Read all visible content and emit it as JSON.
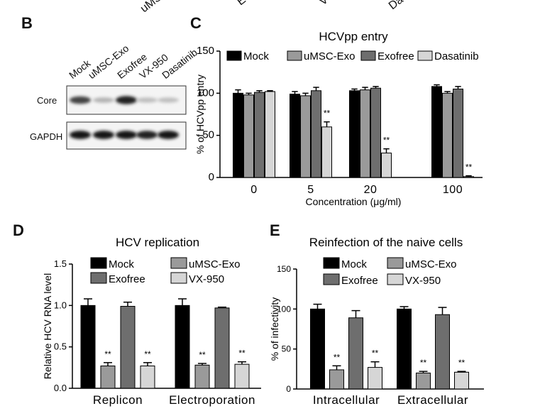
{
  "top_partial_labels": [
    "uMS",
    "E",
    "V",
    "Da"
  ],
  "panelB": {
    "letter": "B",
    "lanes": [
      "Mock",
      "uMSC-Exo",
      "Exofree",
      "VX-950",
      "Dasatinib"
    ],
    "rows": [
      "Core",
      "GAPDH"
    ],
    "band_intensity": {
      "Core": [
        0.75,
        0.25,
        0.9,
        0.2,
        0.2
      ],
      "GAPDH": [
        0.95,
        0.95,
        0.95,
        0.9,
        0.95
      ]
    }
  },
  "chart_data": [
    {
      "id": "C",
      "letter": "C",
      "type": "bar",
      "title": "HCVpp entry",
      "xlabel": "Concentration (μg/ml)",
      "ylabel": "% of HCVpp entry",
      "categories": [
        "0",
        "5",
        "20",
        "100"
      ],
      "ylim": [
        0,
        150
      ],
      "yticks": [
        0,
        50,
        100,
        150
      ],
      "yticklabels": [
        "0",
        "50",
        "100",
        "150"
      ],
      "legend_position": "top",
      "series": [
        {
          "name": "Mock",
          "color": "#000000",
          "values": [
            100,
            99,
            103,
            108
          ],
          "errors": [
            4,
            3,
            2,
            2
          ]
        },
        {
          "name": "uMSC-Exo",
          "color": "#9a9a9a",
          "values": [
            98,
            97,
            104,
            100
          ],
          "errors": [
            2,
            3,
            3,
            2
          ]
        },
        {
          "name": "Exofree",
          "color": "#6e6e6e",
          "values": [
            101,
            103,
            106,
            105
          ],
          "errors": [
            2,
            4,
            2,
            3
          ]
        },
        {
          "name": "Dasatinib",
          "color": "#d6d6d6",
          "values": [
            102,
            60,
            29,
            1
          ],
          "errors": [
            1,
            6,
            5,
            1
          ]
        }
      ],
      "annotations": [
        {
          "series": 3,
          "category": 1,
          "text": "**"
        },
        {
          "series": 3,
          "category": 2,
          "text": "**"
        },
        {
          "series": 3,
          "category": 3,
          "text": "**"
        }
      ]
    },
    {
      "id": "D",
      "letter": "D",
      "type": "bar",
      "title": "HCV replication",
      "xlabel": "",
      "ylabel": "Relative HCV RNA level",
      "categories": [
        "Replicon",
        "Electroporation"
      ],
      "ylim": [
        0,
        1.5
      ],
      "yticks": [
        0,
        0.5,
        1.0,
        1.5
      ],
      "yticklabels": [
        "0.0",
        "0.5",
        "1.0",
        "1.5"
      ],
      "legend_position": "top",
      "series": [
        {
          "name": "Mock",
          "color": "#000000",
          "values": [
            1.0,
            1.0
          ],
          "errors": [
            0.08,
            0.08
          ]
        },
        {
          "name": "uMSC-Exo",
          "color": "#9a9a9a",
          "values": [
            0.27,
            0.28
          ],
          "errors": [
            0.04,
            0.02
          ]
        },
        {
          "name": "Exofree",
          "color": "#6e6e6e",
          "values": [
            0.99,
            0.97
          ],
          "errors": [
            0.05,
            0.01
          ]
        },
        {
          "name": "VX-950",
          "color": "#d6d6d6",
          "values": [
            0.27,
            0.29
          ],
          "errors": [
            0.04,
            0.03
          ]
        }
      ],
      "annotations": [
        {
          "series": 1,
          "category": 0,
          "text": "**"
        },
        {
          "series": 3,
          "category": 0,
          "text": "**"
        },
        {
          "series": 1,
          "category": 1,
          "text": "**"
        },
        {
          "series": 3,
          "category": 1,
          "text": "**"
        }
      ]
    },
    {
      "id": "E",
      "letter": "E",
      "type": "bar",
      "title": "Reinfection of the naive cells",
      "xlabel": "",
      "ylabel": "% of infectivity",
      "categories": [
        "Intracellular",
        "Extracellular"
      ],
      "ylim": [
        0,
        150
      ],
      "yticks": [
        0,
        50,
        100,
        150
      ],
      "yticklabels": [
        "0",
        "50",
        "100",
        "150"
      ],
      "legend_position": "top",
      "series": [
        {
          "name": "Mock",
          "color": "#000000",
          "values": [
            100,
            100
          ],
          "errors": [
            6,
            3
          ]
        },
        {
          "name": "uMSC-Exo",
          "color": "#9a9a9a",
          "values": [
            24,
            20
          ],
          "errors": [
            5,
            2
          ]
        },
        {
          "name": "Exofree",
          "color": "#6e6e6e",
          "values": [
            89,
            93
          ],
          "errors": [
            9,
            9
          ]
        },
        {
          "name": "VX-950",
          "color": "#d6d6d6",
          "values": [
            27,
            21
          ],
          "errors": [
            7,
            1
          ]
        }
      ],
      "annotations": [
        {
          "series": 1,
          "category": 0,
          "text": "**"
        },
        {
          "series": 3,
          "category": 0,
          "text": "**"
        },
        {
          "series": 1,
          "category": 1,
          "text": "**"
        },
        {
          "series": 3,
          "category": 1,
          "text": "**"
        }
      ]
    }
  ]
}
